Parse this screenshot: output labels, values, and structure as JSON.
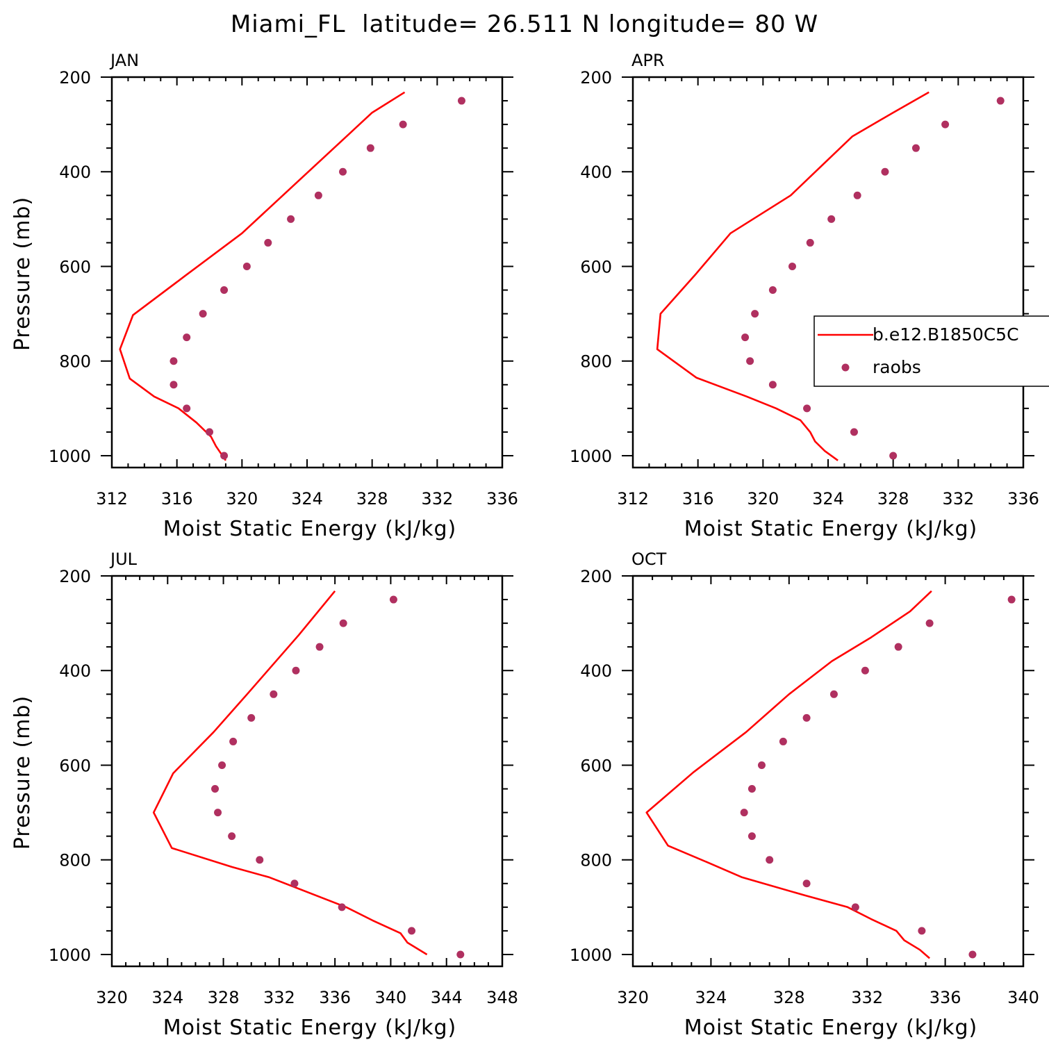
{
  "figure": {
    "title": "Miami_FL  latitude= 26.511 N longitude= 80 W"
  },
  "legend": {
    "model_label": "b.e12.B1850C5C",
    "obs_label": "raobs",
    "model_color": "#ff0000",
    "obs_color": "#b03060",
    "placement": "right side of APR panel, clipped by figure edge"
  },
  "chart_data": [
    {
      "type": "line+scatter",
      "title": "JAN",
      "xlabel": "Moist Static Energy (kJ/kg)",
      "ylabel": "Pressure (mb)",
      "xlim": [
        312,
        336
      ],
      "xticks": [
        312,
        316,
        320,
        324,
        328,
        332,
        336
      ],
      "ylim": [
        1025,
        200
      ],
      "yticks": [
        200,
        400,
        600,
        800,
        1000
      ],
      "grid": false,
      "series": [
        {
          "name": "b.e12.B1850C5C",
          "style": "line",
          "points": [
            [
              330.0,
              232
            ],
            [
              328.0,
              275
            ],
            [
              320.0,
              530
            ],
            [
              316.5,
              620
            ],
            [
              313.3,
              703
            ],
            [
              312.5,
              775
            ],
            [
              313.1,
              837
            ],
            [
              314.6,
              875
            ],
            [
              316.1,
              900
            ],
            [
              317.2,
              930
            ],
            [
              318.1,
              960
            ],
            [
              318.4,
              980
            ],
            [
              319.0,
              1010
            ]
          ]
        },
        {
          "name": "raobs",
          "style": "scatter",
          "points": [
            [
              333.5,
              250
            ],
            [
              329.9,
              300
            ],
            [
              327.9,
              350
            ],
            [
              326.2,
              400
            ],
            [
              324.7,
              450
            ],
            [
              323.0,
              500
            ],
            [
              321.6,
              550
            ],
            [
              320.3,
              600
            ],
            [
              318.9,
              650
            ],
            [
              317.6,
              700
            ],
            [
              316.6,
              750
            ],
            [
              315.8,
              800
            ],
            [
              315.8,
              850
            ],
            [
              316.6,
              900
            ],
            [
              318.0,
              950
            ],
            [
              318.9,
              1000
            ]
          ]
        }
      ]
    },
    {
      "type": "line+scatter",
      "title": "APR",
      "xlabel": "Moist Static Energy (kJ/kg)",
      "ylabel": "",
      "xlim": [
        312,
        336
      ],
      "xticks": [
        312,
        316,
        320,
        324,
        328,
        332,
        336
      ],
      "ylim": [
        1025,
        200
      ],
      "yticks": [
        200,
        400,
        600,
        800,
        1000
      ],
      "grid": false,
      "series": [
        {
          "name": "b.e12.B1850C5C",
          "style": "line",
          "points": [
            [
              330.2,
              232
            ],
            [
              328.0,
              275
            ],
            [
              325.5,
              325
            ],
            [
              321.7,
              450
            ],
            [
              318.0,
              530
            ],
            [
              315.9,
              615
            ],
            [
              313.7,
              700
            ],
            [
              313.5,
              775
            ],
            [
              315.9,
              835
            ],
            [
              319.0,
              875
            ],
            [
              320.8,
              900
            ],
            [
              322.3,
              925
            ],
            [
              322.9,
              950
            ],
            [
              323.2,
              970
            ],
            [
              323.8,
              990
            ],
            [
              324.6,
              1010
            ]
          ]
        },
        {
          "name": "raobs",
          "style": "scatter",
          "points": [
            [
              334.6,
              250
            ],
            [
              331.2,
              300
            ],
            [
              329.4,
              350
            ],
            [
              327.5,
              400
            ],
            [
              325.8,
              450
            ],
            [
              324.2,
              500
            ],
            [
              322.9,
              550
            ],
            [
              321.8,
              600
            ],
            [
              320.6,
              650
            ],
            [
              319.5,
              700
            ],
            [
              318.9,
              750
            ],
            [
              319.2,
              800
            ],
            [
              320.6,
              850
            ],
            [
              322.7,
              900
            ],
            [
              325.6,
              950
            ],
            [
              328.0,
              1000
            ]
          ]
        }
      ]
    },
    {
      "type": "line+scatter",
      "title": "JUL",
      "xlabel": "Moist Static Energy (kJ/kg)",
      "ylabel": "Pressure (mb)",
      "xlim": [
        320,
        348
      ],
      "xticks": [
        320,
        324,
        328,
        332,
        336,
        340,
        344,
        348
      ],
      "ylim": [
        1025,
        200
      ],
      "yticks": [
        200,
        400,
        600,
        800,
        1000
      ],
      "grid": false,
      "series": [
        {
          "name": "b.e12.B1850C5C",
          "style": "line",
          "points": [
            [
              336.0,
              232
            ],
            [
              333.4,
              325
            ],
            [
              329.7,
              450
            ],
            [
              327.3,
              530
            ],
            [
              324.4,
              617
            ],
            [
              323.0,
              700
            ],
            [
              324.3,
              775
            ],
            [
              328.6,
              815
            ],
            [
              331.3,
              837
            ],
            [
              336.8,
              900
            ],
            [
              338.7,
              928
            ],
            [
              340.7,
              955
            ],
            [
              341.2,
              975
            ],
            [
              342.6,
              1000
            ]
          ]
        },
        {
          "name": "raobs",
          "style": "scatter",
          "points": [
            [
              340.2,
              250
            ],
            [
              336.6,
              300
            ],
            [
              334.9,
              350
            ],
            [
              333.2,
              400
            ],
            [
              331.6,
              450
            ],
            [
              330.0,
              500
            ],
            [
              328.7,
              550
            ],
            [
              327.9,
              600
            ],
            [
              327.4,
              650
            ],
            [
              327.6,
              700
            ],
            [
              328.6,
              750
            ],
            [
              330.6,
              800
            ],
            [
              333.1,
              850
            ],
            [
              336.5,
              900
            ],
            [
              341.5,
              950
            ],
            [
              345.0,
              1000
            ]
          ]
        }
      ]
    },
    {
      "type": "line+scatter",
      "title": "OCT",
      "xlabel": "Moist Static Energy (kJ/kg)",
      "ylabel": "",
      "xlim": [
        320,
        340
      ],
      "xticks": [
        320,
        324,
        328,
        332,
        336,
        340
      ],
      "ylim": [
        1025,
        200
      ],
      "yticks": [
        200,
        400,
        600,
        800,
        1000
      ],
      "grid": false,
      "series": [
        {
          "name": "b.e12.B1850C5C",
          "style": "line",
          "points": [
            [
              335.3,
              232
            ],
            [
              334.2,
              275
            ],
            [
              332.2,
              330
            ],
            [
              330.2,
              380
            ],
            [
              328.0,
              450
            ],
            [
              325.8,
              530
            ],
            [
              323.1,
              615
            ],
            [
              320.7,
              700
            ],
            [
              321.8,
              770
            ],
            [
              323.8,
              805
            ],
            [
              325.6,
              837
            ],
            [
              328.8,
              875
            ],
            [
              331.0,
              900
            ],
            [
              332.2,
              925
            ],
            [
              333.5,
              950
            ],
            [
              333.9,
              970
            ],
            [
              334.7,
              990
            ],
            [
              335.2,
              1008
            ]
          ]
        },
        {
          "name": "raobs",
          "style": "scatter",
          "points": [
            [
              339.4,
              250
            ],
            [
              335.2,
              300
            ],
            [
              333.6,
              350
            ],
            [
              331.9,
              400
            ],
            [
              330.3,
              450
            ],
            [
              328.9,
              500
            ],
            [
              327.7,
              550
            ],
            [
              326.6,
              600
            ],
            [
              326.1,
              650
            ],
            [
              325.7,
              700
            ],
            [
              326.1,
              750
            ],
            [
              327.0,
              800
            ],
            [
              328.9,
              850
            ],
            [
              331.4,
              900
            ],
            [
              334.8,
              950
            ],
            [
              337.4,
              1000
            ]
          ]
        }
      ]
    }
  ]
}
